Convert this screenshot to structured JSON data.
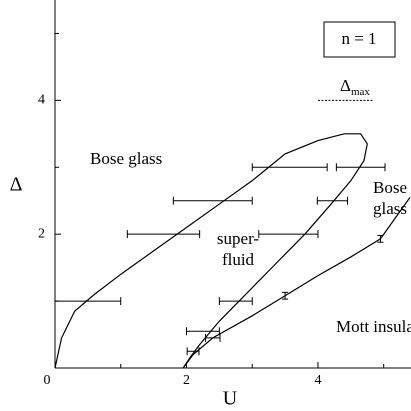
{
  "chart_data": {
    "type": "line",
    "xlabel": "U",
    "ylabel": "Δ",
    "xlim": [
      0,
      5.4
    ],
    "ylim": [
      0,
      5.5
    ],
    "xticks": [
      0,
      2,
      4
    ],
    "yticks": [
      2,
      4
    ],
    "xminor": [
      1,
      3,
      5
    ],
    "yminor": [
      1,
      3,
      5
    ],
    "legend_text": "n = 1",
    "annotations": [
      "Bose glass",
      "Bose",
      "glass",
      "super-",
      "fluid",
      "Mott insulator"
    ],
    "delta_max": {
      "symbol": "Δ",
      "sub": "max",
      "value": 4,
      "x": [
        4,
        4.85
      ]
    },
    "color": "#000000",
    "series": [
      {
        "x": [
          0,
          0.1,
          0.3,
          0.6,
          1.0,
          1.5,
          2.0,
          2.5,
          3.0,
          3.5,
          4.0,
          4.4,
          4.65,
          4.75,
          4.7,
          4.5,
          4.2,
          3.8,
          3.3,
          2.9,
          2.5,
          2.2,
          2.05,
          1.95
        ],
        "values": [
          0,
          0.45,
          0.85,
          1.1,
          1.4,
          1.75,
          2.1,
          2.45,
          2.8,
          3.2,
          3.4,
          3.5,
          3.5,
          3.35,
          3.1,
          2.8,
          2.45,
          2.0,
          1.5,
          1.1,
          0.7,
          0.35,
          0.15,
          0
        ]
      },
      {
        "x": [
          1.95,
          2.1,
          2.4,
          3.0,
          3.5,
          4.0,
          4.5,
          4.95,
          5.4
        ],
        "values": [
          0,
          0.2,
          0.45,
          0.78,
          1.08,
          1.38,
          1.66,
          1.93,
          2.55
        ]
      }
    ],
    "xerrorbars": {
      "x": [
        0.5,
        1.65,
        2.4,
        3.57,
        2.75,
        3.55,
        4.22,
        4.65,
        2.25,
        2.4,
        2.1
      ],
      "y": [
        1,
        2,
        2.5,
        3,
        1,
        2,
        2.5,
        3,
        0.55,
        0.45,
        0.25
      ],
      "err": [
        0.5,
        0.55,
        0.6,
        0.57,
        0.25,
        0.45,
        0.23,
        0.37,
        0.25,
        0.11,
        0.09
      ]
    },
    "yerrorbars": {
      "x": [
        3.5,
        4.95
      ],
      "y": [
        1.08,
        1.93
      ],
      "err": [
        0.05,
        0.05
      ]
    }
  }
}
